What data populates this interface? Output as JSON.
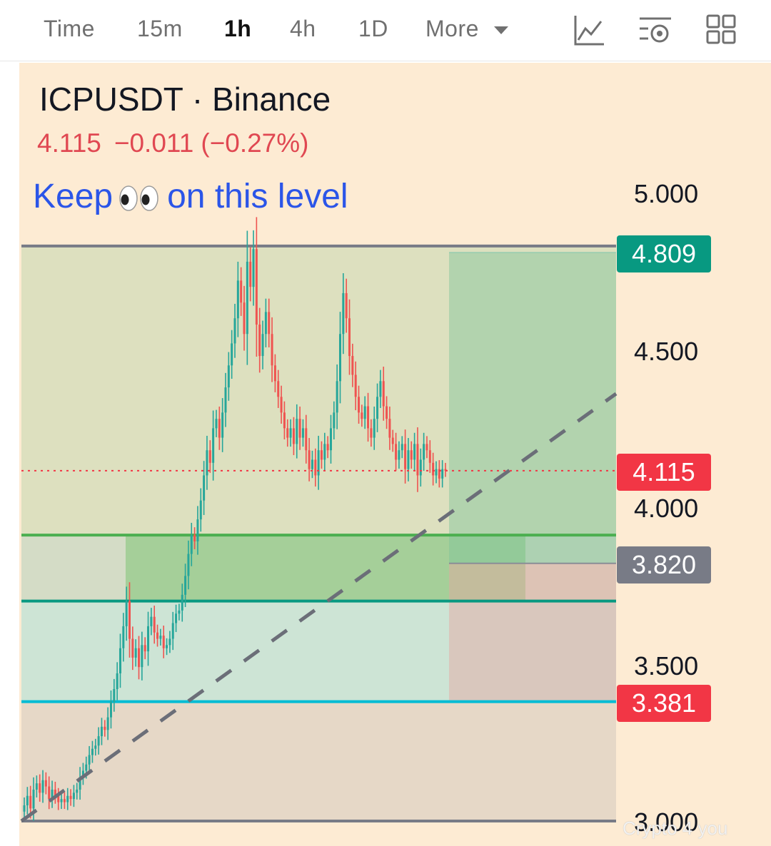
{
  "toolbar": {
    "timeframes": [
      "Time",
      "15m",
      "1h",
      "4h",
      "1D"
    ],
    "active_timeframe": "1h",
    "more_label": "More",
    "icons": [
      "indicators-icon",
      "chart-settings-icon",
      "layout-grid-icon"
    ]
  },
  "header": {
    "symbol": "ICPUSDT · Binance",
    "last_price": "4.115",
    "change": "−0.011",
    "change_pct": "(−0.27%)",
    "price_color": "#e04852"
  },
  "annotation": {
    "before": "Keep",
    "after": "on this level",
    "emoji": "eyes"
  },
  "axis": {
    "ticks": [
      "5.000",
      "4.500",
      "4.000",
      "3.500",
      "3.000"
    ]
  },
  "price_tags": {
    "target": "4.809",
    "current": "4.115",
    "entry": "3.820",
    "stop": "3.381"
  },
  "colors": {
    "background": "#fdebd3",
    "up": "#26a69a",
    "down": "#ef5350",
    "target_tag": "#089981",
    "current_tag": "#f23645",
    "entry_tag": "#787b86",
    "stop_tag": "#f23645",
    "annotation_text": "#2b55e8"
  },
  "watermark": "Crypto 4 you",
  "chart_data": {
    "type": "candlestick",
    "symbol": "ICPUSDT",
    "exchange": "Binance",
    "timeframe": "1h",
    "ylim": [
      3.0,
      5.0
    ],
    "y_ticks": [
      3.0,
      3.5,
      4.0,
      4.5,
      5.0
    ],
    "current_price": 4.115,
    "horizontal_levels": [
      {
        "price": 4.83,
        "color": "#787b86"
      },
      {
        "price": 3.91,
        "color": "#4caf50"
      },
      {
        "price": 3.7,
        "color": "#089981"
      },
      {
        "price": 3.38,
        "color": "#00bcd4"
      },
      {
        "price": 3.0,
        "color": "#787b86"
      }
    ],
    "zones": [
      {
        "from": 3.91,
        "to": 4.83,
        "color": "#dde0bf"
      },
      {
        "from": 3.7,
        "to": 3.91,
        "color": "#d4dcc6"
      },
      {
        "from": 3.38,
        "to": 3.7,
        "color": "#cde4d5"
      },
      {
        "from": 3.0,
        "to": 3.38,
        "color": "#e6d8c7"
      }
    ],
    "trendline": {
      "style": "dashed",
      "from_price": 3.0,
      "to_price": 4.36
    },
    "position": {
      "side": "long",
      "target": 4.809,
      "entry": 3.82,
      "stop": 3.381
    },
    "candles_close": [
      3.05,
      3.08,
      3.04,
      3.1,
      3.12,
      3.09,
      3.13,
      3.11,
      3.07,
      3.1,
      3.08,
      3.06,
      3.07,
      3.06,
      3.08,
      3.07,
      3.09,
      3.1,
      3.14,
      3.16,
      3.18,
      3.21,
      3.23,
      3.24,
      3.27,
      3.3,
      3.29,
      3.33,
      3.38,
      3.42,
      3.47,
      3.55,
      3.62,
      3.7,
      3.58,
      3.52,
      3.55,
      3.49,
      3.56,
      3.54,
      3.62,
      3.65,
      3.6,
      3.58,
      3.59,
      3.55,
      3.56,
      3.58,
      3.63,
      3.66,
      3.67,
      3.72,
      3.78,
      3.85,
      3.91,
      3.89,
      3.96,
      4.02,
      4.1,
      4.18,
      4.14,
      4.25,
      4.28,
      4.22,
      4.3,
      4.38,
      4.45,
      4.52,
      4.6,
      4.72,
      4.65,
      4.55,
      4.78,
      4.7,
      4.82,
      4.58,
      4.48,
      4.55,
      4.62,
      4.55,
      4.45,
      4.4,
      4.35,
      4.3,
      4.25,
      4.22,
      4.25,
      4.2,
      4.28,
      4.22,
      4.25,
      4.18,
      4.12,
      4.15,
      4.1,
      4.18,
      4.15,
      4.2,
      4.18,
      4.25,
      4.3,
      4.4,
      4.55,
      4.68,
      4.6,
      4.48,
      4.42,
      4.35,
      4.3,
      4.28,
      4.32,
      4.25,
      4.22,
      4.28,
      4.35,
      4.4,
      4.32,
      4.28,
      4.22,
      4.2,
      4.15,
      4.18,
      4.2,
      4.12,
      4.18,
      4.15,
      4.2,
      4.1,
      4.15,
      4.2,
      4.18,
      4.14,
      4.1,
      4.12,
      4.09,
      4.12,
      4.115
    ]
  }
}
